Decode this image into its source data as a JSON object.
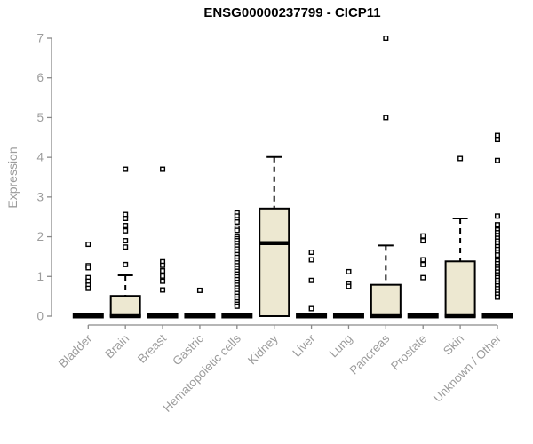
{
  "title": "ENSG00000237799 - CICP11",
  "chart_data": {
    "type": "boxplot",
    "title": "ENSG00000237799 - CICP11",
    "ylabel": "Expression",
    "xlabel": "",
    "ylim": [
      0,
      7
    ],
    "yticks": [
      0,
      1,
      2,
      3,
      4,
      5,
      6,
      7
    ],
    "grid": false,
    "legend": false,
    "colors": {
      "box_fill": "#EDE8D1",
      "box_stroke": "#000000",
      "axis": "#8A8A8A",
      "tick_label": "#9C9C9C",
      "title": "#000000"
    },
    "categories": [
      {
        "label": "Bladder",
        "q1": 0,
        "median": 0,
        "q3": 0,
        "whisker_low": 0,
        "whisker_high": 0,
        "outliers": [
          1.81,
          1.27,
          1.22,
          0.97,
          0.88,
          0.78,
          0.7
        ]
      },
      {
        "label": "Brain",
        "q1": 0,
        "median": 0,
        "q3": 0.51,
        "whisker_low": 0,
        "whisker_high": 1.03,
        "outliers": [
          3.7,
          2.56,
          2.46,
          2.28,
          2.15,
          1.9,
          1.74,
          1.3
        ]
      },
      {
        "label": "Breast",
        "q1": 0,
        "median": 0,
        "q3": 0,
        "whisker_low": 0,
        "whisker_high": 0,
        "outliers": [
          3.7,
          1.37,
          1.28,
          1.14,
          1.01,
          0.88,
          0.66
        ]
      },
      {
        "label": "Gastric",
        "q1": 0,
        "median": 0,
        "q3": 0,
        "whisker_low": 0,
        "whisker_high": 0,
        "outliers": [
          0.65
        ]
      },
      {
        "label": "Hematopoietic cells",
        "q1": 0,
        "median": 0,
        "q3": 0,
        "whisker_low": 0,
        "whisker_high": 0,
        "outliers": [
          2.6,
          2.52,
          2.43,
          2.37,
          2.22,
          2.16,
          2.0,
          1.95,
          1.9,
          1.83,
          1.76,
          1.69,
          1.62,
          1.55,
          1.48,
          1.41,
          1.34,
          1.27,
          1.2,
          1.13,
          1.06,
          0.99,
          0.92,
          0.85,
          0.78,
          0.71,
          0.64,
          0.57,
          0.5,
          0.43,
          0.36,
          0.3,
          0.25
        ]
      },
      {
        "label": "Kidney",
        "q1": 0,
        "median": 1.84,
        "q3": 2.71,
        "whisker_low": 0,
        "whisker_high": 4.01,
        "outliers": []
      },
      {
        "label": "Liver",
        "q1": 0,
        "median": 0,
        "q3": 0,
        "whisker_low": 0,
        "whisker_high": 0,
        "outliers": [
          1.61,
          1.42,
          0.9,
          0.19
        ]
      },
      {
        "label": "Lung",
        "q1": 0,
        "median": 0,
        "q3": 0,
        "whisker_low": 0,
        "whisker_high": 0,
        "outliers": [
          1.12,
          0.81,
          0.75
        ]
      },
      {
        "label": "Pancreas",
        "q1": 0,
        "median": 0,
        "q3": 0.79,
        "whisker_low": 0,
        "whisker_high": 1.78,
        "outliers": [
          7.0,
          5.0
        ]
      },
      {
        "label": "Prostate",
        "q1": 0,
        "median": 0,
        "q3": 0,
        "whisker_low": 0,
        "whisker_high": 0,
        "outliers": [
          2.02,
          1.9,
          1.42,
          1.3,
          0.97
        ]
      },
      {
        "label": "Skin",
        "q1": 0,
        "median": 0,
        "q3": 1.38,
        "whisker_low": 0,
        "whisker_high": 2.46,
        "outliers": [
          3.97
        ]
      },
      {
        "label": "Unknown / Other",
        "q1": 0,
        "median": 0,
        "q3": 0,
        "whisker_low": 0,
        "whisker_high": 0,
        "outliers": [
          4.55,
          4.45,
          3.92,
          2.52,
          2.3,
          2.17,
          2.1,
          2.03,
          1.96,
          1.89,
          1.82,
          1.75,
          1.68,
          1.61,
          1.54,
          1.39,
          1.32,
          1.25,
          1.18,
          1.11,
          1.04,
          0.97,
          0.9,
          0.83,
          0.76,
          0.69,
          0.62,
          0.55,
          0.48
        ]
      }
    ]
  }
}
